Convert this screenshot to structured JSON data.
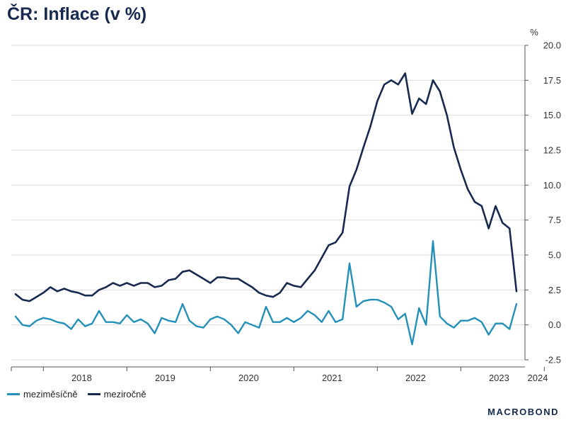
{
  "title": "ČR: Inflace (v %)",
  "brand": "MACROBOND",
  "colors": {
    "mom": "#2490b8",
    "yoy": "#17294f",
    "grid": "#dddddd",
    "axis": "#555555"
  },
  "chart_data": {
    "type": "line",
    "title": "ČR: Inflace (v %)",
    "ylabel": "%",
    "ylim": [
      -2.5,
      20.0
    ],
    "yticks": [
      "-2.5",
      "0.0",
      "2.5",
      "5.0",
      "7.5",
      "10.0",
      "12.5",
      "15.0",
      "17.5",
      "20.0"
    ],
    "year_labels": [
      "2018",
      "2019",
      "2020",
      "2021",
      "2022",
      "2023",
      "2024"
    ],
    "x_start": "2017-09",
    "x_end": "2024-01",
    "grid": true,
    "legend": "bottom-left",
    "series": [
      {
        "name": "meziměsíčně",
        "color": "#2490b8",
        "values": [
          0.6,
          0.0,
          -0.1,
          0.3,
          0.5,
          0.4,
          0.2,
          0.1,
          -0.3,
          0.4,
          -0.1,
          0.1,
          1.0,
          0.2,
          0.2,
          0.1,
          0.7,
          0.2,
          0.4,
          0.1,
          -0.6,
          0.5,
          0.3,
          0.2,
          1.5,
          0.3,
          -0.1,
          -0.2,
          0.4,
          0.6,
          0.4,
          0.0,
          -0.6,
          0.2,
          0.0,
          -0.2,
          1.3,
          0.2,
          0.2,
          0.5,
          0.2,
          0.5,
          1.0,
          0.7,
          0.2,
          1.0,
          0.2,
          0.4,
          4.4,
          1.3,
          1.7,
          1.8,
          1.8,
          1.6,
          1.3,
          0.4,
          0.8,
          -1.4,
          1.2,
          0.0,
          6.0,
          0.6,
          0.1,
          -0.2,
          0.3,
          0.3,
          0.5,
          0.2,
          -0.7,
          0.1,
          0.1,
          -0.3,
          1.5
        ]
      },
      {
        "name": "meziročně",
        "color": "#17294f",
        "values": [
          2.2,
          1.8,
          1.7,
          2.0,
          2.3,
          2.7,
          2.4,
          2.6,
          2.4,
          2.3,
          2.1,
          2.1,
          2.5,
          2.7,
          3.0,
          2.8,
          3.0,
          2.8,
          3.0,
          3.0,
          2.7,
          2.8,
          3.2,
          3.3,
          3.8,
          3.9,
          3.6,
          3.3,
          3.0,
          3.4,
          3.4,
          3.3,
          3.3,
          3.0,
          2.7,
          2.3,
          2.1,
          2.0,
          2.3,
          3.0,
          2.8,
          2.7,
          3.3,
          3.9,
          4.8,
          5.7,
          5.9,
          6.6,
          9.9,
          11.1,
          12.7,
          14.2,
          16.0,
          17.2,
          17.5,
          17.2,
          18.0,
          15.1,
          16.2,
          15.8,
          17.5,
          16.7,
          15.0,
          12.7,
          11.1,
          9.7,
          8.8,
          8.5,
          6.9,
          8.5,
          7.3,
          6.9,
          2.4
        ]
      }
    ]
  }
}
